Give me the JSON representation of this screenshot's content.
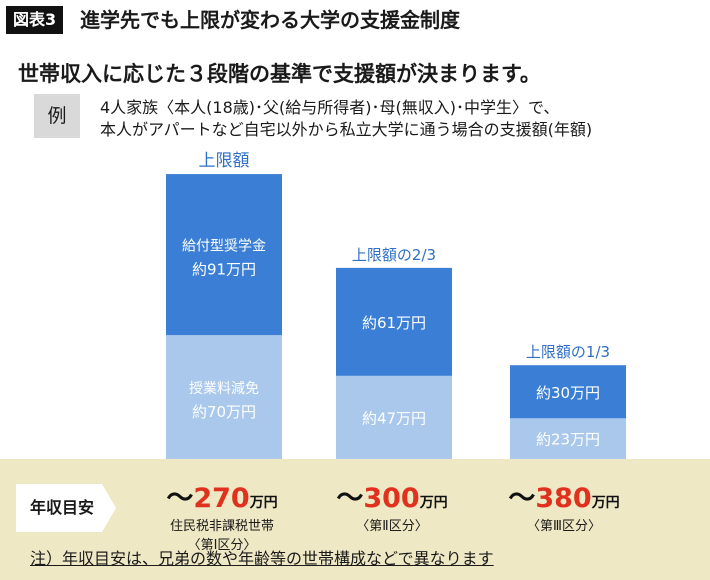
{
  "header": {
    "tag": "図表3",
    "title": "進学先でも上限が変わる大学の支援金制度"
  },
  "subtitle": "世帯収入に応じた３段階の基準で支援額が決まります。",
  "example": {
    "label": "例",
    "line1": "4人家族〈本人(18歳)･父(給与所得者)･母(無収入)･中学生〉で、",
    "line2": "本人がアパートなど自宅以外から私立大学に通う場合の支援額(年額)"
  },
  "colors": {
    "scholarship": "#3a7fd5",
    "tuition": "#a9c8ec",
    "label_blue": "#2f6fc6",
    "band": "#efe8c4",
    "red": "#e0301e"
  },
  "chart_data": {
    "type": "bar",
    "stacked": true,
    "unit": "万円",
    "categories": [
      "上限額",
      "上限額の2/3",
      "上限額の1/3"
    ],
    "series": [
      {
        "name": "授業料減免",
        "values": [
          70,
          47,
          23
        ],
        "labels": [
          "約70万円",
          "約47万円",
          "約23万円"
        ]
      },
      {
        "name": "給付型奨学金",
        "values": [
          91,
          61,
          30
        ],
        "labels": [
          "約91万円",
          "約61万円",
          "約30万円"
        ]
      }
    ],
    "ylim": [
      0,
      165
    ],
    "grid": false
  },
  "income": {
    "label": "年収目安",
    "items": [
      {
        "prefix": "～",
        "amount": "270",
        "unit": "万円",
        "sub1": "住民税非課税世帯",
        "sub2": "〈第Ⅰ区分〉"
      },
      {
        "prefix": "～",
        "amount": "300",
        "unit": "万円",
        "sub1": "〈第Ⅱ区分〉",
        "sub2": ""
      },
      {
        "prefix": "～",
        "amount": "380",
        "unit": "万円",
        "sub1": "〈第Ⅲ区分〉",
        "sub2": ""
      }
    ]
  },
  "footnote": "注）年収目安は、兄弟の数や年齢等の世帯構成などで異なります"
}
